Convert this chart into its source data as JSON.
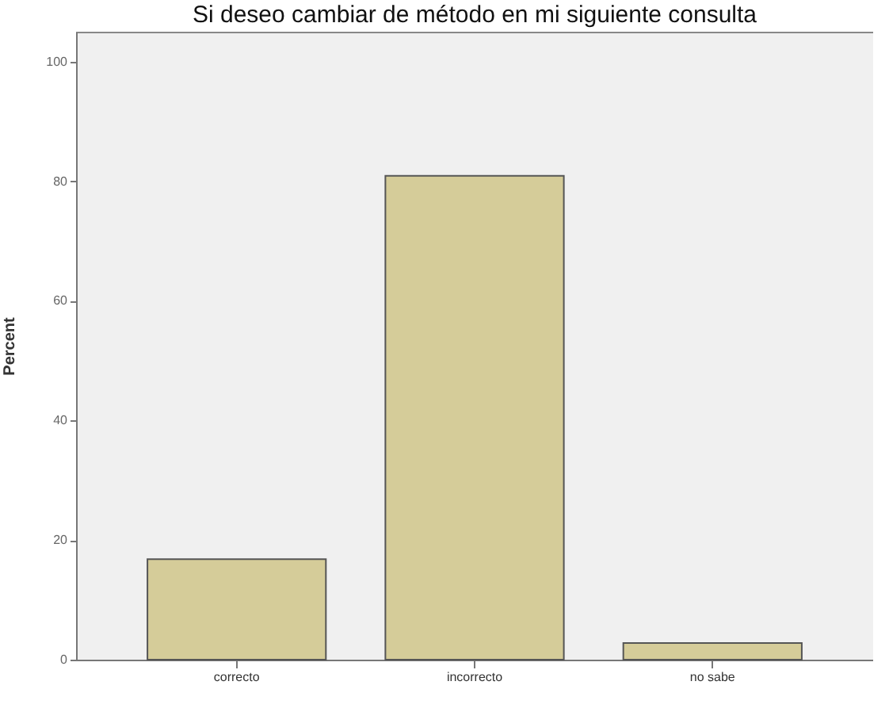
{
  "chart_data": {
    "type": "bar",
    "title": "Si deseo cambiar de método en mi siguiente consulta",
    "ylabel": "Percent",
    "categories": [
      "correcto",
      "incorrecto",
      "no sabe"
    ],
    "values": [
      16.8,
      80.9,
      2.8
    ],
    "color": "#d5cc99",
    "ylim": [
      0,
      105
    ],
    "yticks": [
      0,
      20,
      40,
      60,
      80,
      100
    ],
    "grid": false
  }
}
